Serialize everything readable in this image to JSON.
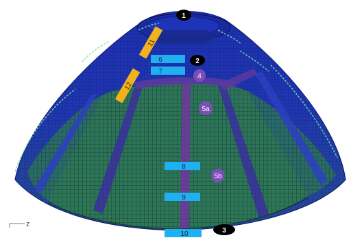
{
  "figure": {
    "axis_label": "z"
  },
  "markers": {
    "black": [
      {
        "id": "m1",
        "text": "1"
      },
      {
        "id": "m2",
        "text": "2"
      },
      {
        "id": "m3",
        "text": "3"
      }
    ],
    "purple": [
      {
        "id": "p4",
        "text": "4"
      },
      {
        "id": "p5a",
        "text": "5a"
      },
      {
        "id": "p5b",
        "text": "5b"
      }
    ],
    "cyan": [
      {
        "id": "c6",
        "text": "6"
      },
      {
        "id": "c7",
        "text": "7"
      },
      {
        "id": "c8",
        "text": "8"
      },
      {
        "id": "c9",
        "text": "9"
      },
      {
        "id": "c10",
        "text": "10"
      }
    ],
    "orange": [
      {
        "id": "o11",
        "text": "11"
      },
      {
        "id": "o12",
        "text": "12"
      }
    ]
  },
  "colors": {
    "dark_blue": "#1a2ca8",
    "mid_blue": "#2437c8",
    "green": "#2f7f55",
    "dark_green": "#1f5a40",
    "purple_strip": "#6a3a9a",
    "black_marker": "#000000",
    "purple_marker": "#7b4fb6",
    "cyan_marker": "#20b0f0",
    "orange_marker": "#f2b21d"
  }
}
